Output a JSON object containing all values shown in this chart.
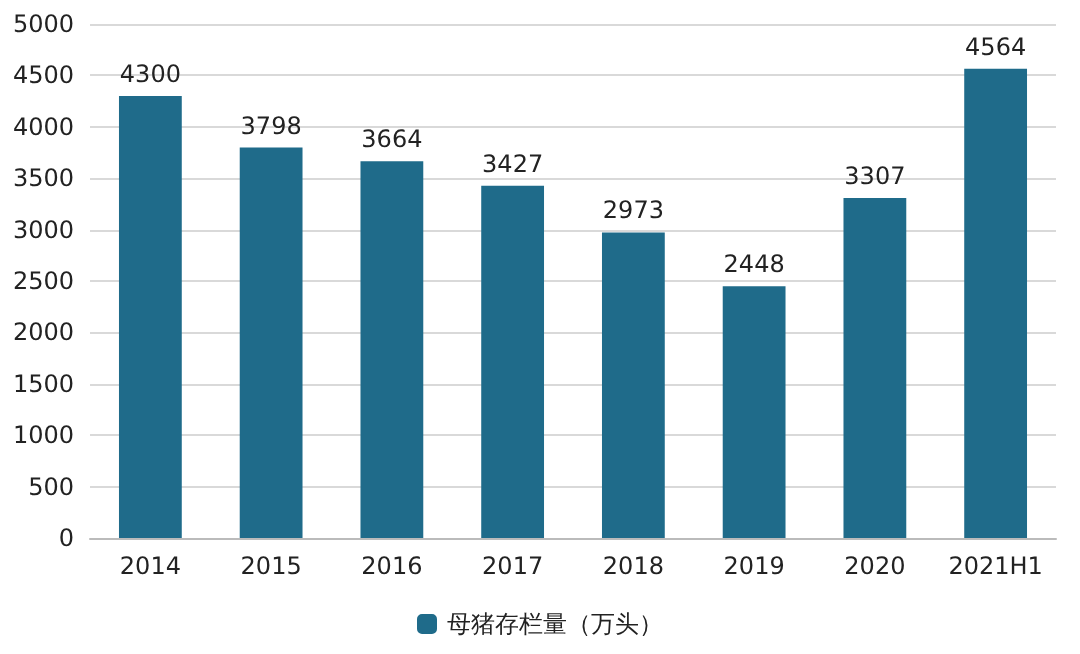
{
  "chart_data": {
    "type": "bar",
    "categories": [
      "2014",
      "2015",
      "2016",
      "2017",
      "2018",
      "2019",
      "2020",
      "2021H1"
    ],
    "series": [
      {
        "name": "母猪存栏量（万头）",
        "color": "#1f6b8a",
        "values": [
          4300,
          3798,
          3664,
          3427,
          2973,
          2448,
          3307,
          4564
        ]
      }
    ],
    "ylim": [
      0,
      5000
    ],
    "yticks": [
      0,
      500,
      1000,
      1500,
      2000,
      2500,
      3000,
      3500,
      4000,
      4500,
      5000
    ],
    "grid": "y",
    "legend": "bottom",
    "data_labels": true
  }
}
